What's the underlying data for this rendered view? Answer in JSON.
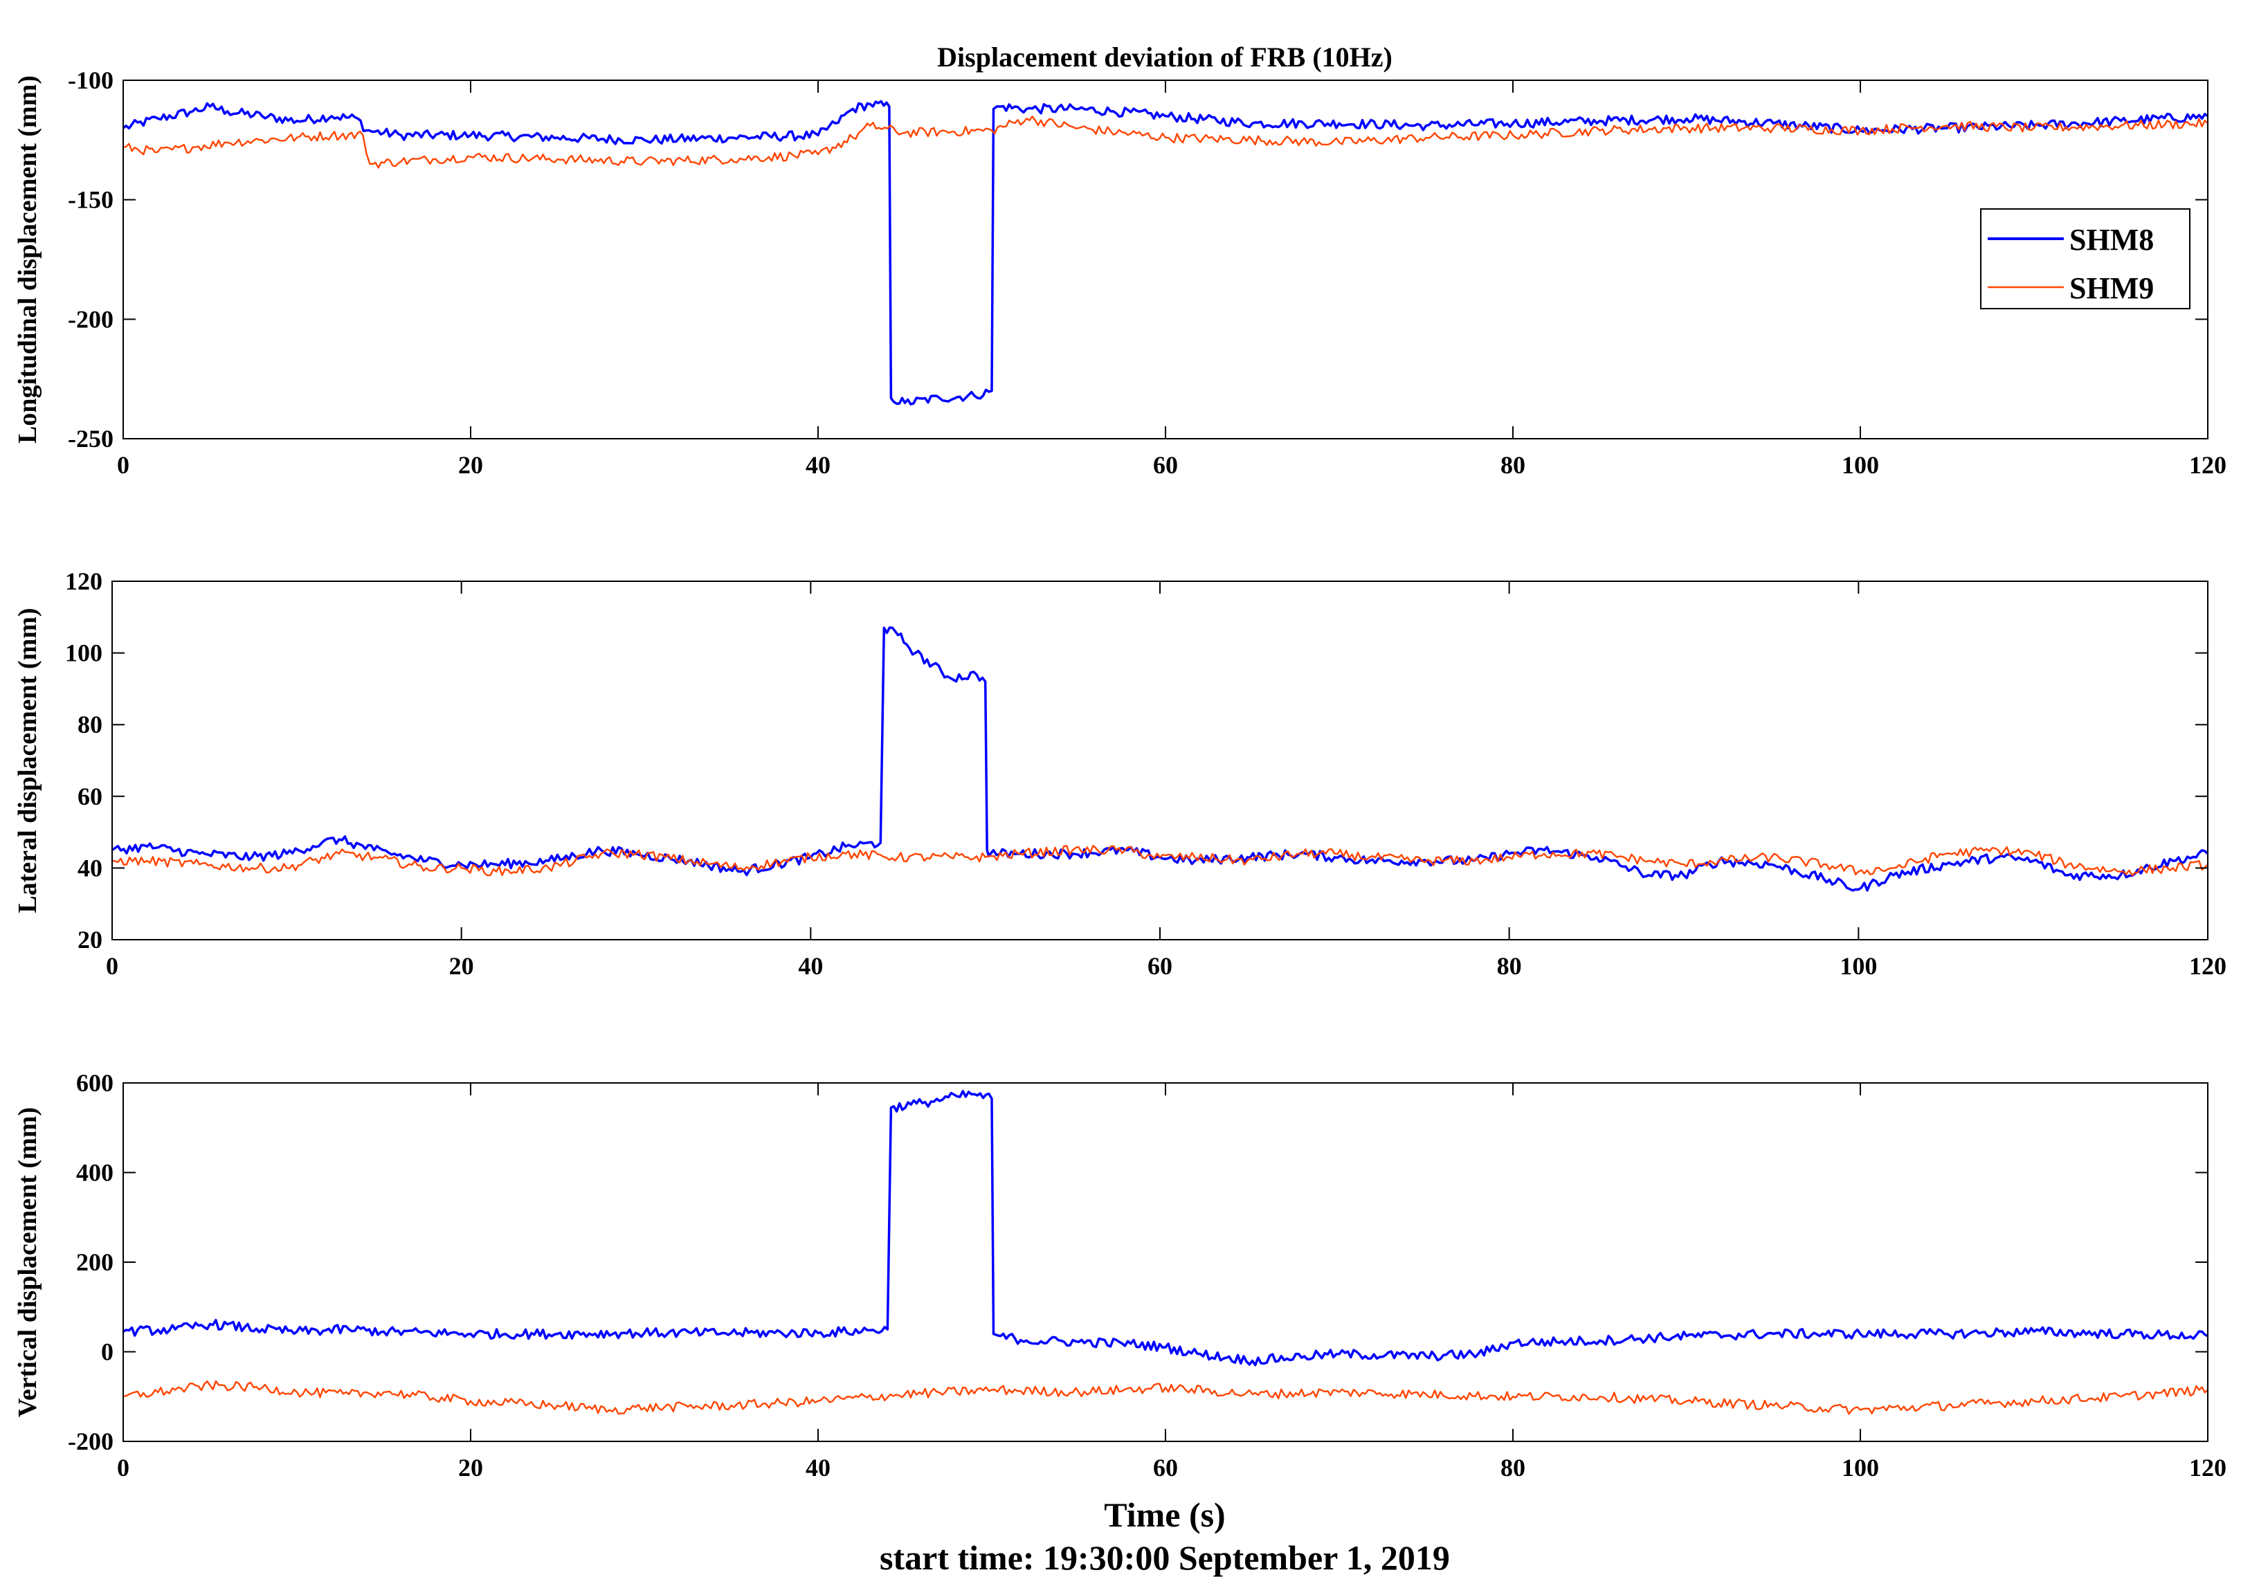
{
  "title": "Displacement deviation of FRB (10Hz)",
  "xlabel": "Time (s)",
  "footer": "start time: 19:30:00 September 1, 2019",
  "colors": {
    "SHM8": "#0000ff",
    "SHM9": "#ff4500",
    "axis": "#000000"
  },
  "legend": {
    "placement": "right, upper-middle of top panel",
    "entries": [
      "SHM8",
      "SHM9"
    ]
  },
  "chart_data": [
    {
      "type": "line",
      "ylabel": "Longitudinal displacement (mm)",
      "xlim": [
        0,
        120
      ],
      "ylim": [
        -250,
        -100
      ],
      "xticks": [
        0,
        20,
        40,
        60,
        80,
        100,
        120
      ],
      "yticks": [
        -100,
        -150,
        -200,
        -250
      ],
      "series": [
        {
          "name": "SHM8",
          "x": [
            0,
            2,
            4,
            5,
            6,
            8,
            10,
            12,
            13.5,
            14,
            16,
            20,
            25,
            30,
            35,
            40,
            41,
            42,
            43,
            44.1,
            44.2,
            45,
            47,
            49,
            50,
            50.1,
            50.5,
            52,
            55,
            57,
            60,
            65,
            70,
            75,
            80,
            85,
            90,
            95,
            100,
            105,
            110,
            115,
            120
          ],
          "y": [
            -120,
            -116,
            -113,
            -111,
            -113,
            -115,
            -117,
            -115,
            -116,
            -121,
            -123,
            -123,
            -124,
            -125,
            -124,
            -123,
            -118,
            -112,
            -110,
            -111,
            -233,
            -235,
            -233,
            -232,
            -230,
            -112,
            -111,
            -112,
            -112,
            -113,
            -115,
            -118,
            -118,
            -119,
            -118,
            -117,
            -116,
            -118,
            -121,
            -120,
            -119,
            -117,
            -115
          ]
        },
        {
          "name": "SHM9",
          "x": [
            0,
            2,
            4,
            6,
            8,
            10,
            12,
            13.8,
            14.2,
            16,
            18,
            20,
            25,
            30,
            35,
            40,
            42,
            43,
            45,
            50,
            52,
            55,
            60,
            65,
            70,
            75,
            80,
            85,
            90,
            95,
            100,
            105,
            110,
            115,
            120
          ],
          "y": [
            -128,
            -130,
            -128,
            -126,
            -125,
            -124,
            -123,
            -123,
            -135,
            -134,
            -133,
            -132,
            -133,
            -134,
            -133,
            -131,
            -124,
            -119,
            -122,
            -121,
            -116,
            -120,
            -124,
            -125,
            -126,
            -124,
            -123,
            -121,
            -120,
            -120,
            -121,
            -119,
            -120,
            -119,
            -118
          ]
        }
      ]
    },
    {
      "type": "line",
      "ylabel": "Lateral displacement (mm)",
      "xlim": [
        0,
        120
      ],
      "ylim": [
        20,
        120
      ],
      "xticks": [
        0,
        20,
        40,
        60,
        80,
        100,
        120
      ],
      "yticks": [
        20,
        40,
        60,
        80,
        100,
        120
      ],
      "series": [
        {
          "name": "SHM8",
          "x": [
            0,
            2,
            5,
            8,
            10,
            12,
            13,
            15,
            18,
            20,
            22,
            25,
            28,
            30,
            33,
            36,
            40,
            42,
            44,
            44.2,
            45,
            46,
            48,
            49.5,
            50,
            50.1,
            50.3,
            52,
            55,
            58,
            60,
            62,
            65,
            68,
            70,
            72,
            75,
            78,
            80,
            82,
            85,
            88,
            90,
            92,
            95,
            98,
            100,
            102,
            105,
            108,
            110,
            112,
            115,
            118,
            120
          ],
          "y": [
            45,
            46,
            44,
            43,
            44,
            47,
            48,
            45,
            42,
            41,
            41,
            42,
            45,
            44,
            42,
            39,
            43,
            46,
            47,
            107,
            105,
            100,
            93,
            94,
            92,
            45,
            44,
            44,
            44,
            45,
            43,
            42,
            43,
            44,
            43,
            42,
            42,
            42,
            44,
            45,
            43,
            38,
            38,
            42,
            41,
            37,
            34,
            38,
            41,
            43,
            42,
            38,
            38,
            42,
            44
          ]
        },
        {
          "name": "SHM9",
          "x": [
            0,
            2,
            5,
            8,
            10,
            13,
            15,
            18,
            20,
            22,
            25,
            28,
            30,
            33,
            36,
            40,
            42,
            45,
            48,
            50,
            52,
            55,
            58,
            60,
            62,
            65,
            68,
            70,
            72,
            75,
            78,
            80,
            82,
            85,
            88,
            90,
            92,
            95,
            98,
            100,
            102,
            105,
            108,
            110,
            112,
            115,
            118,
            120
          ],
          "y": [
            42,
            42,
            41,
            40,
            40,
            44,
            43,
            40,
            40,
            39,
            40,
            44,
            44,
            42,
            40,
            43,
            44,
            43,
            43,
            43,
            44,
            45,
            45,
            43,
            43,
            42,
            44,
            44,
            43,
            42,
            42,
            43,
            44,
            44,
            42,
            41,
            42,
            43,
            41,
            39,
            40,
            44,
            45,
            44,
            41,
            39,
            40,
            41
          ]
        }
      ]
    },
    {
      "type": "line",
      "ylabel": "Vertical displacement (mm)",
      "xlim": [
        0,
        120
      ],
      "ylim": [
        -200,
        600
      ],
      "xticks": [
        0,
        20,
        40,
        60,
        80,
        100,
        120
      ],
      "yticks": [
        -200,
        0,
        200,
        400,
        600
      ],
      "series": [
        {
          "name": "SHM8",
          "x": [
            0,
            3,
            5,
            8,
            10,
            13,
            15,
            20,
            25,
            30,
            35,
            40,
            43,
            44,
            44.2,
            46,
            48,
            49,
            50,
            50.1,
            50.5,
            52,
            55,
            58,
            60,
            62,
            65,
            68,
            70,
            75,
            78,
            80,
            85,
            90,
            95,
            100,
            105,
            110,
            115,
            120
          ],
          "y": [
            45,
            50,
            62,
            50,
            45,
            50,
            45,
            40,
            40,
            42,
            42,
            42,
            48,
            50,
            545,
            555,
            570,
            575,
            565,
            40,
            35,
            25,
            22,
            18,
            10,
            -5,
            -20,
            -10,
            -5,
            -10,
            -5,
            20,
            25,
            35,
            40,
            40,
            40,
            45,
            40,
            35
          ]
        },
        {
          "name": "SHM9",
          "x": [
            0,
            3,
            5,
            8,
            10,
            13,
            15,
            20,
            25,
            28,
            30,
            35,
            40,
            45,
            50,
            55,
            60,
            65,
            70,
            75,
            80,
            85,
            90,
            95,
            100,
            105,
            110,
            115,
            120
          ],
          "y": [
            -100,
            -85,
            -75,
            -80,
            -90,
            -95,
            -90,
            -110,
            -120,
            -130,
            -125,
            -120,
            -110,
            -95,
            -85,
            -90,
            -80,
            -95,
            -90,
            -95,
            -100,
            -100,
            -110,
            -120,
            -130,
            -120,
            -110,
            -100,
            -85
          ]
        }
      ]
    }
  ]
}
